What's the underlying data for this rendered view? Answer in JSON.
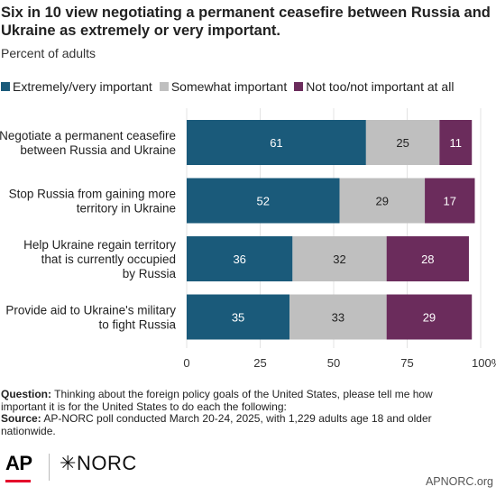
{
  "title": "Six in 10 view negotiating a permanent ceasefire between Russia and Ukraine as extremely or very important.",
  "subtitle": "Percent of adults",
  "colors": {
    "extremely": "#1a5a7a",
    "somewhat": "#bfbfbf",
    "not": "#6b2c5c"
  },
  "chart_data": {
    "type": "bar",
    "orientation": "horizontal",
    "stacked": true,
    "categories": [
      [
        "Negotiate a permanent ceasefire",
        "between Russia and Ukraine"
      ],
      [
        "Stop Russia from gaining more",
        "territory in Ukraine"
      ],
      [
        "Help Ukraine regain territory",
        "that is currently occupied",
        "by Russia"
      ],
      [
        "Provide aid to Ukraine's military",
        "to fight Russia"
      ]
    ],
    "series": [
      {
        "name": "Extremely/very important",
        "color_key": "extremely",
        "values": [
          61,
          52,
          36,
          35
        ]
      },
      {
        "name": "Somewhat important",
        "color_key": "somewhat",
        "values": [
          25,
          29,
          32,
          33
        ]
      },
      {
        "name": "Not too/not important at all",
        "color_key": "not",
        "values": [
          11,
          17,
          28,
          29
        ]
      }
    ],
    "xlim": [
      0,
      100
    ],
    "xticks": [
      {
        "value": 0,
        "label": "0"
      },
      {
        "value": 25,
        "label": "25"
      },
      {
        "value": 50,
        "label": "50"
      },
      {
        "value": 75,
        "label": "75"
      },
      {
        "value": 100,
        "label": "100%"
      }
    ],
    "grid": "vertical",
    "legend": "top"
  },
  "notes": {
    "question_label": "Question:",
    "question_text": "Thinking about the foreign policy goals of the United States, please tell me how important it is for the United States to do each the following:",
    "source_label": "Source:",
    "source_text": "AP-NORC poll conducted March 20-24, 2025, with 1,229 adults age 18 and older nationwide."
  },
  "logos": {
    "ap": "AP",
    "norc": "NORC",
    "norc_mark": "✳"
  },
  "site": "APNORC.org"
}
